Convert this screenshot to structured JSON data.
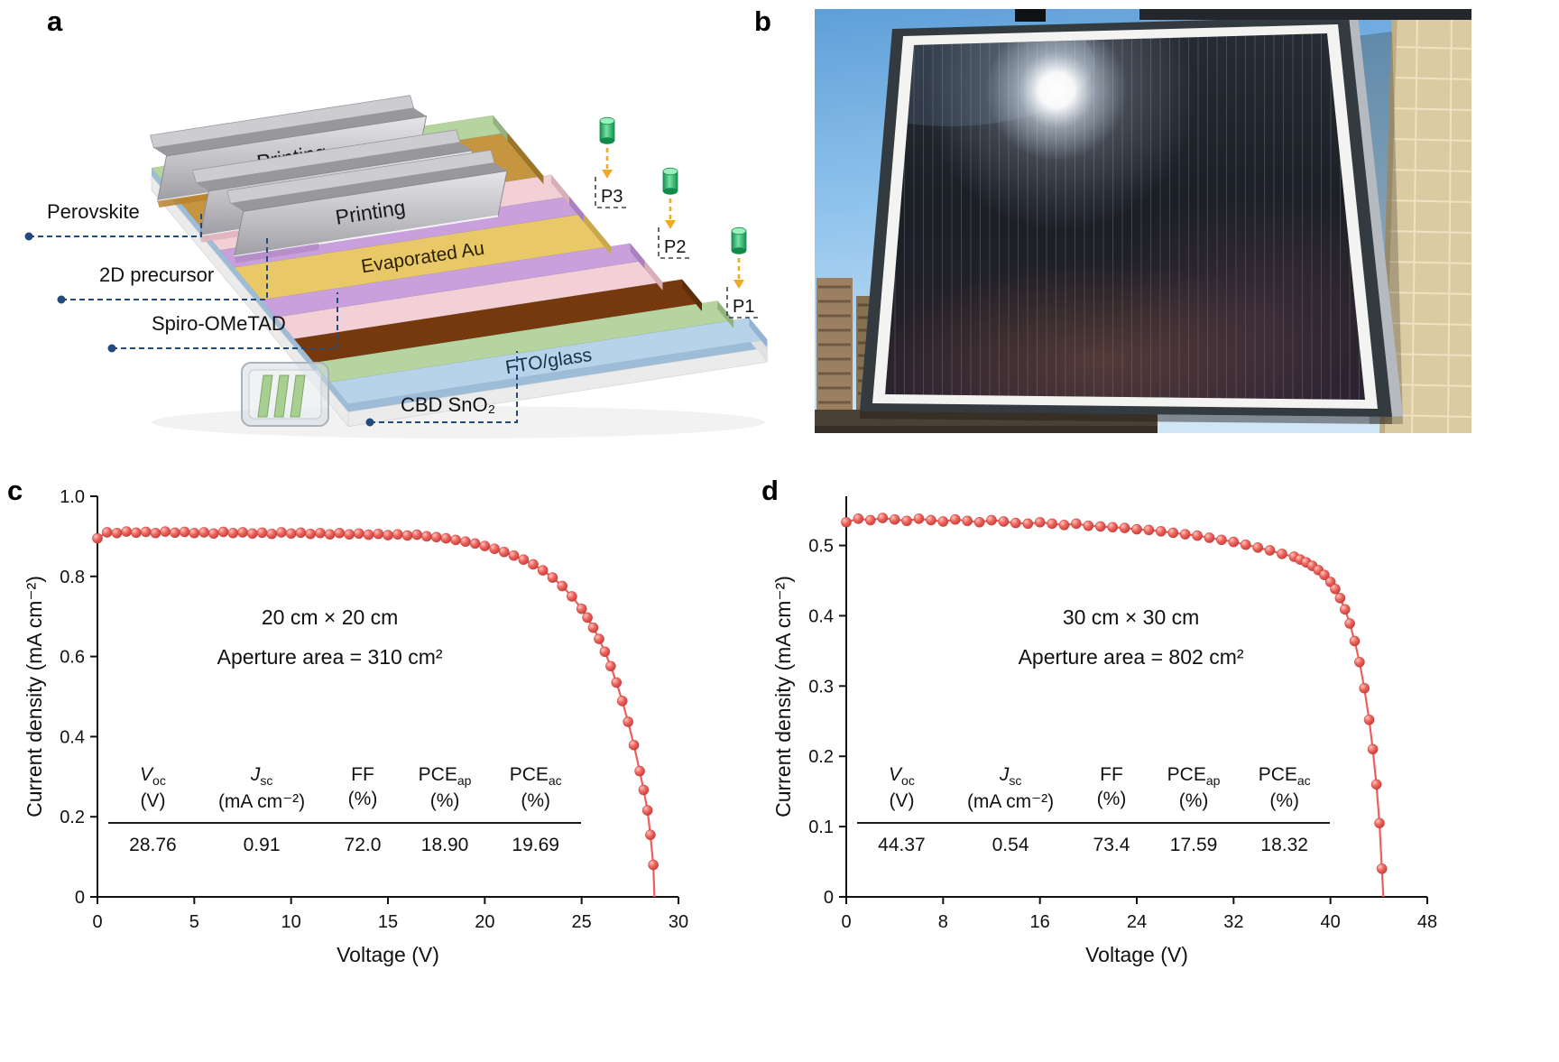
{
  "panel_labels": {
    "a": "a",
    "b": "b",
    "c": "c",
    "d": "d"
  },
  "panel_a": {
    "blade_label": "Printing",
    "layer_labels": {
      "perovskite": "Perovskite",
      "precursor_2d": "2D precursor",
      "spiro": "Spiro-OMeTAD",
      "cbd_sno2": "CBD SnO₂",
      "evaporated_au": "Evaporated Au",
      "fto_glass": "FTO/glass"
    },
    "scribe_labels": {
      "p1": "P1",
      "p2": "P2",
      "p3": "P3"
    },
    "colors": {
      "au": "#e9c867",
      "spiro": "#c9a0dc",
      "precursor_2d": "#f3cfd6",
      "perovskite_wet": "#c5953f",
      "perovskite": "#76390d",
      "sno2": "#b6d4a0",
      "fto": "#b7d3ea",
      "glass": "#ebebeb",
      "blade": "#c9c9cd",
      "laser_head": "#2eb872",
      "laser_arrow": "#f0a828",
      "connector": "#234a7d"
    }
  },
  "panel_b": {
    "alt": "Photograph of a printed perovskite solar module standing outdoors in sunlight against a tiled wall, sun glare reflecting on the dark module, high-rise buildings and blue sky in the background"
  },
  "chart_data": [
    {
      "id": "c",
      "type": "line",
      "panel": "c",
      "xlabel": "Voltage (V)",
      "ylabel": "Current density (mA cm⁻²)",
      "xlim": [
        0,
        30
      ],
      "ylim": [
        0,
        1.0
      ],
      "xticks": [
        0,
        5,
        10,
        15,
        20,
        25,
        30
      ],
      "yticks": [
        0,
        0.2,
        0.4,
        0.6,
        0.8,
        1.0
      ],
      "ytick_labels": [
        "0",
        "0.2",
        "0.4",
        "0.6",
        "0.8",
        "1.0"
      ],
      "annotations": [
        "20 cm × 20 cm",
        "Aperture area = 310 cm²"
      ],
      "series": [
        {
          "name": "J-V curve 20cm module",
          "color": "#ed5f5b",
          "x": [
            0,
            0.5,
            1,
            1.5,
            2,
            2.5,
            3,
            3.5,
            4,
            4.5,
            5,
            5.5,
            6,
            6.5,
            7,
            7.5,
            8,
            8.5,
            9,
            9.5,
            10,
            10.5,
            11,
            11.5,
            12,
            12.5,
            13,
            13.5,
            14,
            14.5,
            15,
            15.5,
            16,
            16.5,
            17,
            17.5,
            18,
            18.5,
            19,
            19.5,
            20,
            20.5,
            21,
            21.5,
            22,
            22.5,
            23,
            23.5,
            24,
            24.5,
            25,
            25.3,
            25.6,
            25.9,
            26.2,
            26.5,
            26.8,
            27.1,
            27.4,
            27.7,
            28,
            28.2,
            28.4,
            28.55,
            28.7,
            28.76
          ],
          "y": [
            0.895,
            0.91,
            0.908,
            0.912,
            0.909,
            0.911,
            0.908,
            0.912,
            0.909,
            0.911,
            0.908,
            0.91,
            0.907,
            0.911,
            0.908,
            0.91,
            0.907,
            0.909,
            0.906,
            0.91,
            0.907,
            0.909,
            0.906,
            0.908,
            0.905,
            0.908,
            0.905,
            0.907,
            0.904,
            0.906,
            0.903,
            0.905,
            0.902,
            0.904,
            0.9,
            0.898,
            0.895,
            0.891,
            0.887,
            0.882,
            0.876,
            0.869,
            0.861,
            0.852,
            0.842,
            0.83,
            0.815,
            0.797,
            0.776,
            0.75,
            0.719,
            0.697,
            0.672,
            0.644,
            0.612,
            0.576,
            0.535,
            0.489,
            0.437,
            0.379,
            0.314,
            0.267,
            0.216,
            0.155,
            0.08,
            0
          ]
        }
      ],
      "table": {
        "columns": [
          {
            "symbol": "V",
            "italic": true,
            "sub": "oc",
            "unit": "(V)",
            "value": "28.76"
          },
          {
            "symbol": "J",
            "italic": true,
            "sub": "sc",
            "unit": "(mA cm⁻²)",
            "value": "0.91"
          },
          {
            "symbol": "FF",
            "italic": false,
            "sub": "",
            "unit": "(%)",
            "value": "72.0"
          },
          {
            "symbol": "PCE",
            "italic": false,
            "sub": "ap",
            "unit": "(%)",
            "value": "18.90"
          },
          {
            "symbol": "PCE",
            "italic": false,
            "sub": "ac",
            "unit": "(%)",
            "value": "19.69"
          }
        ]
      }
    },
    {
      "id": "d",
      "type": "line",
      "panel": "d",
      "xlabel": "Voltage (V)",
      "ylabel": "Current density (mA cm⁻²)",
      "xlim": [
        0,
        48
      ],
      "ylim": [
        0,
        0.57
      ],
      "xticks": [
        0,
        8,
        16,
        24,
        32,
        40,
        48
      ],
      "yticks": [
        0,
        0.1,
        0.2,
        0.3,
        0.4,
        0.5
      ],
      "ytick_labels": [
        "0",
        "0.1",
        "0.2",
        "0.3",
        "0.4",
        "0.5"
      ],
      "annotations": [
        "30 cm × 30 cm",
        "Aperture area = 802 cm²"
      ],
      "series": [
        {
          "name": "J-V curve 30cm module",
          "color": "#ed5f5b",
          "x": [
            0,
            1,
            2,
            3,
            4,
            5,
            6,
            7,
            8,
            9,
            10,
            11,
            12,
            13,
            14,
            15,
            16,
            17,
            18,
            19,
            20,
            21,
            22,
            23,
            24,
            25,
            26,
            27,
            28,
            29,
            30,
            31,
            32,
            33,
            34,
            35,
            36,
            37,
            37.5,
            38,
            38.5,
            39,
            39.5,
            40,
            40.4,
            40.8,
            41.2,
            41.6,
            42,
            42.4,
            42.8,
            43.2,
            43.5,
            43.8,
            44.05,
            44.25,
            44.37
          ],
          "y": [
            0.533,
            0.538,
            0.536,
            0.539,
            0.537,
            0.535,
            0.538,
            0.536,
            0.534,
            0.537,
            0.535,
            0.533,
            0.536,
            0.534,
            0.532,
            0.531,
            0.533,
            0.531,
            0.529,
            0.531,
            0.528,
            0.527,
            0.526,
            0.525,
            0.523,
            0.522,
            0.52,
            0.518,
            0.516,
            0.514,
            0.511,
            0.508,
            0.505,
            0.501,
            0.497,
            0.493,
            0.488,
            0.484,
            0.48,
            0.476,
            0.471,
            0.465,
            0.458,
            0.448,
            0.438,
            0.425,
            0.409,
            0.389,
            0.364,
            0.334,
            0.297,
            0.252,
            0.21,
            0.16,
            0.105,
            0.04,
            0
          ]
        }
      ],
      "table": {
        "columns": [
          {
            "symbol": "V",
            "italic": true,
            "sub": "oc",
            "unit": "(V)",
            "value": "44.37"
          },
          {
            "symbol": "J",
            "italic": true,
            "sub": "sc",
            "unit": "(mA cm⁻²)",
            "value": "0.54"
          },
          {
            "symbol": "FF",
            "italic": false,
            "sub": "",
            "unit": "(%)",
            "value": "73.4"
          },
          {
            "symbol": "PCE",
            "italic": false,
            "sub": "ap",
            "unit": "(%)",
            "value": "17.59"
          },
          {
            "symbol": "PCE",
            "italic": false,
            "sub": "ac",
            "unit": "(%)",
            "value": "18.32"
          }
        ]
      }
    }
  ]
}
